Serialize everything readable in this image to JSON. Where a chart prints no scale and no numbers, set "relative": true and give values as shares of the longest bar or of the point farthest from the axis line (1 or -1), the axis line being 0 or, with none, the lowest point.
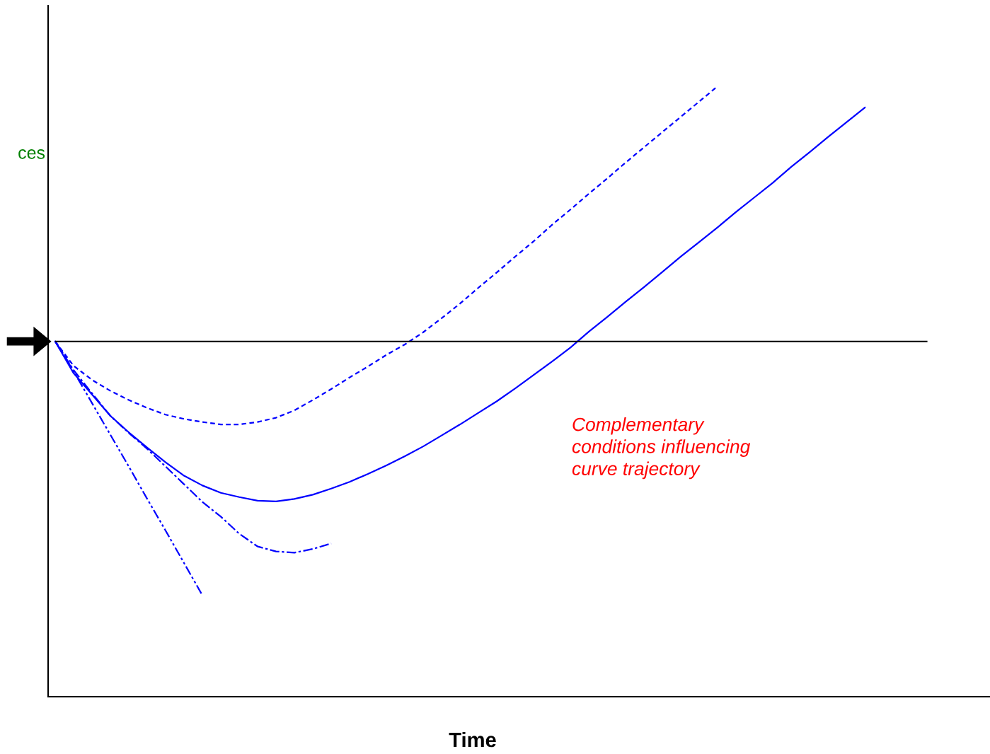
{
  "chart_data": {
    "type": "line",
    "relative": true,
    "xlabel": "Time",
    "ylabel": "ces",
    "categories": [
      null,
      null,
      null,
      null,
      null,
      null,
      null,
      null,
      null,
      null,
      null,
      null,
      null,
      null,
      null,
      null,
      null,
      null,
      null,
      null,
      null,
      null,
      null,
      null,
      null,
      null,
      null,
      null,
      null,
      null,
      null,
      null,
      null,
      null,
      null,
      null,
      null,
      null,
      null,
      null,
      null,
      null,
      null,
      null,
      null
    ],
    "series": [
      {
        "color": "#0000ff",
        "line_style": "solid",
        "values": [
          0.582,
          0.53,
          0.495,
          0.46,
          0.433,
          0.408,
          0.384,
          0.362,
          0.346,
          0.334,
          0.327,
          0.321,
          0.32,
          0.324,
          0.331,
          0.341,
          0.352,
          0.365,
          0.379,
          0.394,
          0.41,
          0.428,
          0.446,
          0.465,
          0.484,
          0.505,
          0.527,
          0.549,
          0.572,
          0.598,
          0.622,
          0.647,
          0.671,
          0.696,
          0.721,
          0.745,
          0.769,
          0.794,
          0.818,
          0.842,
          0.868,
          0.892,
          0.917,
          0.941,
          0.965
        ]
      },
      {
        "color": "#0000ff",
        "line_style": "dashed",
        "values": [
          0.582,
          0.542,
          0.519,
          0.501,
          0.486,
          0.473,
          0.462,
          0.455,
          0.45,
          0.446,
          0.446,
          0.45,
          0.457,
          0.469,
          0.486,
          0.504,
          0.523,
          0.541,
          0.56,
          0.577,
          0.597,
          0.62,
          0.644,
          0.67,
          0.695,
          0.721,
          0.746,
          0.773,
          0.798,
          0.824,
          0.849,
          0.875,
          0.9,
          0.925,
          0.95,
          0.975,
          1.0,
          null,
          null,
          null,
          null,
          null,
          null,
          null,
          null
        ]
      },
      {
        "color": "#0000ff",
        "line_style": "dashdot",
        "values": [
          0.582,
          0.535,
          0.497,
          0.46,
          0.432,
          0.406,
          0.377,
          0.348,
          0.319,
          0.295,
          0.267,
          0.246,
          0.238,
          0.236,
          0.242,
          0.251,
          null,
          null,
          null,
          null,
          null,
          null,
          null,
          null,
          null,
          null,
          null,
          null,
          null,
          null,
          null,
          null,
          null,
          null,
          null,
          null,
          null,
          null,
          null,
          null,
          null,
          null,
          null,
          null,
          null
        ]
      },
      {
        "color": "#0000ff",
        "line_style": "dashdotdot",
        "values": [
          0.582,
          0.533,
          0.481,
          0.429,
          0.377,
          0.324,
          0.272,
          0.219,
          0.166,
          null,
          null,
          null,
          null,
          null,
          null,
          null,
          null,
          null,
          null,
          null,
          null,
          null,
          null,
          null,
          null,
          null,
          null,
          null,
          null,
          null,
          null,
          null,
          null,
          null,
          null,
          null,
          null,
          null,
          null,
          null,
          null,
          null,
          null,
          null,
          null
        ]
      }
    ],
    "ref_lines": [
      {
        "axis": "y",
        "value": 0.582,
        "color": "#000000"
      }
    ],
    "annotations": [
      "Complementary\nconditions influencing\ncurve trajectory"
    ]
  }
}
